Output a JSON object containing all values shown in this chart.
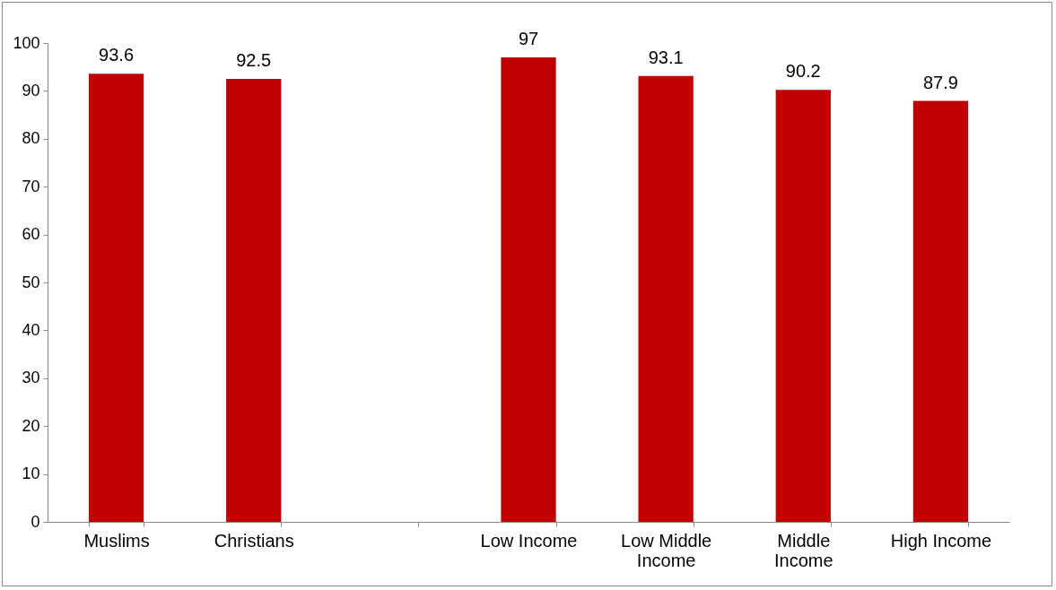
{
  "chart_data": {
    "type": "bar",
    "categories": [
      "Muslims",
      "Christians",
      null,
      "Low Income",
      "Low Middle Income",
      "Middle Income",
      "High Income"
    ],
    "values": [
      93.6,
      92.5,
      null,
      97,
      93.1,
      90.2,
      87.9
    ],
    "color": "#c00000",
    "ylim": [
      0,
      100
    ],
    "yticks": [
      0,
      10,
      20,
      30,
      40,
      50,
      60,
      70,
      80,
      90,
      100
    ],
    "grid": false,
    "data_labels": true
  }
}
